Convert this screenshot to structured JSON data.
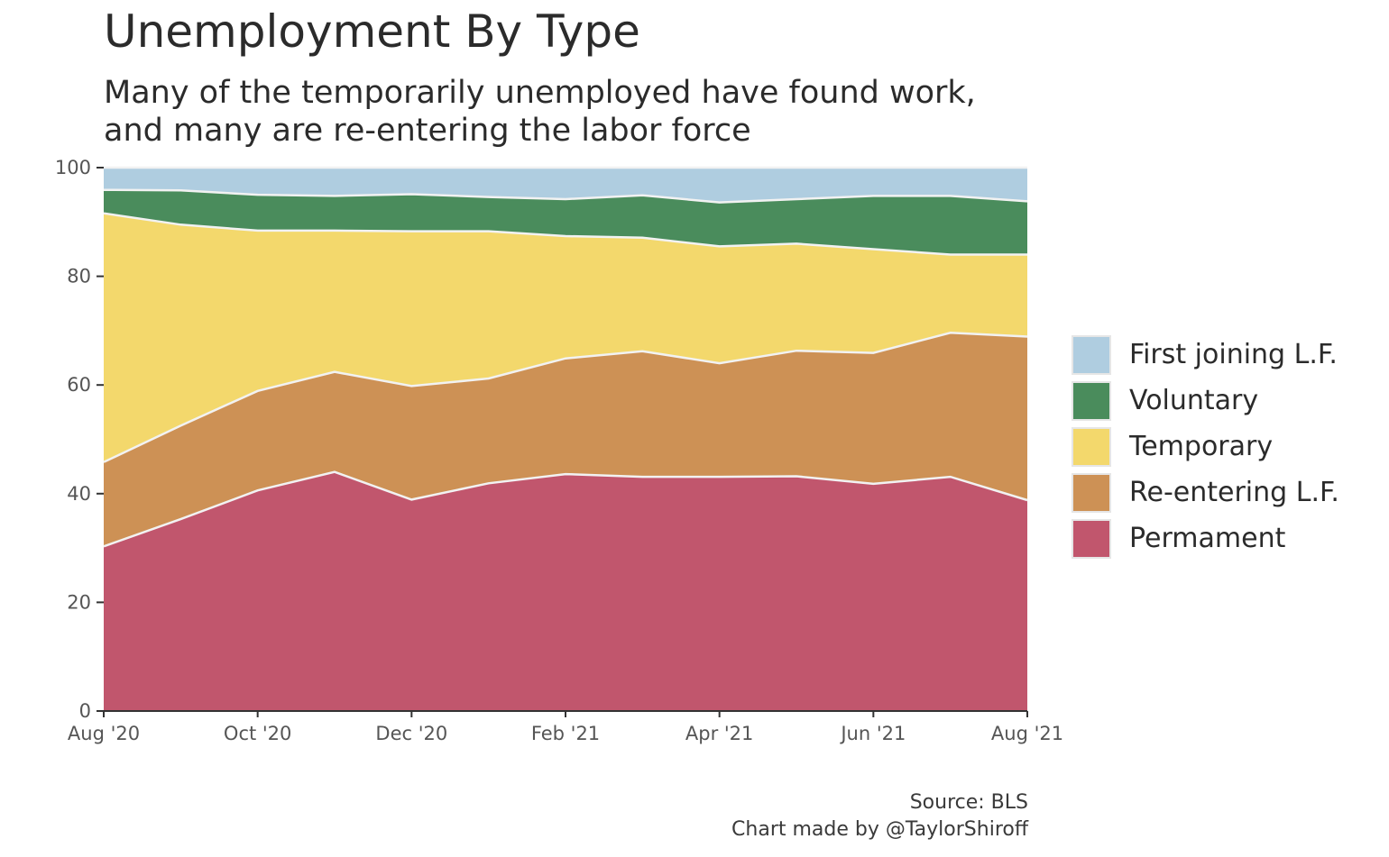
{
  "title": "Unemployment By Type",
  "subtitle_line1": "Many of the temporarily unemployed have found work,",
  "subtitle_line2": "and many are re-entering the labor force",
  "caption_source": "Source: BLS",
  "caption_credit": "Chart made by @TaylorShiroff",
  "chart_data": {
    "type": "area",
    "stacked": true,
    "x": [
      "2020-08",
      "2020-09",
      "2020-10",
      "2020-11",
      "2020-12",
      "2021-01",
      "2021-02",
      "2021-03",
      "2021-04",
      "2021-05",
      "2021-06",
      "2021-07",
      "2021-08"
    ],
    "x_tick_labels": [
      "Aug '20",
      "Oct '20",
      "Dec '20",
      "Feb '21",
      "Apr '21",
      "Jun '21",
      "Aug '21"
    ],
    "x_tick_positions": [
      "2020-08",
      "2020-10",
      "2020-12",
      "2021-02",
      "2021-04",
      "2021-06",
      "2021-08"
    ],
    "y_tick_labels": [
      "0",
      "20",
      "40",
      "60",
      "80",
      "100"
    ],
    "ylim": [
      0,
      100
    ],
    "grid": false,
    "legend_position": "right",
    "series": [
      {
        "name": "Permament",
        "color": "#c1566d",
        "values": [
          30.3,
          35.3,
          40.6,
          44.0,
          38.9,
          41.9,
          43.6,
          43.1,
          43.1,
          43.2,
          41.8,
          43.1,
          38.8
        ]
      },
      {
        "name": "Re-entering L.F.",
        "color": "#cd9155",
        "values": [
          15.5,
          17.2,
          18.3,
          18.4,
          20.9,
          19.3,
          21.3,
          23.1,
          20.9,
          23.1,
          24.1,
          26.5,
          30.1
        ]
      },
      {
        "name": "Temporary",
        "color": "#f3d86c",
        "values": [
          45.8,
          37.0,
          29.5,
          26.0,
          28.5,
          27.1,
          22.5,
          20.9,
          21.5,
          19.7,
          19.1,
          14.4,
          15.1
        ]
      },
      {
        "name": "Voluntary",
        "color": "#4a8c5c",
        "values": [
          4.3,
          6.3,
          6.6,
          6.4,
          6.8,
          6.3,
          6.8,
          7.8,
          8.1,
          8.2,
          9.8,
          10.8,
          9.8
        ]
      },
      {
        "name": "First joining L.F.",
        "color": "#afcde0",
        "values": [
          4.1,
          4.2,
          5.0,
          5.2,
          4.9,
          5.4,
          5.8,
          5.1,
          6.4,
          5.8,
          5.2,
          5.2,
          6.2
        ]
      }
    ]
  },
  "legend": [
    {
      "label": "First joining L.F.",
      "color": "#afcde0"
    },
    {
      "label": "Voluntary",
      "color": "#4a8c5c"
    },
    {
      "label": "Temporary",
      "color": "#f3d86c"
    },
    {
      "label": "Re-entering L.F.",
      "color": "#cd9155"
    },
    {
      "label": "Permament",
      "color": "#c1566d"
    }
  ]
}
